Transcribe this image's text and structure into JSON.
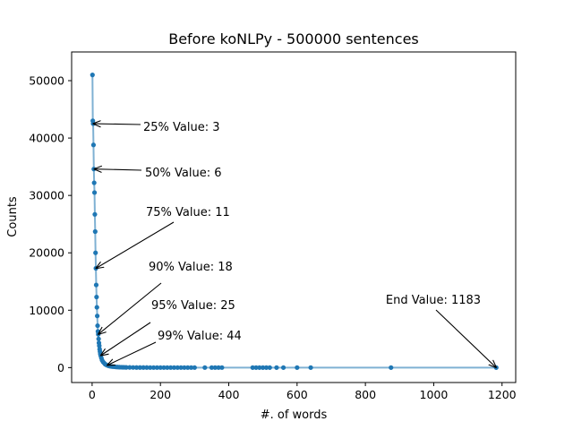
{
  "chart_data": {
    "type": "line",
    "title": "Before koNLPy - 500000 sentences",
    "xlabel": "#. of words",
    "ylabel": "Counts",
    "xlim": [
      -60,
      1240
    ],
    "ylim": [
      -2600,
      55000
    ],
    "xticks": [
      0,
      200,
      400,
      600,
      800,
      1000,
      1200
    ],
    "yticks": [
      0,
      10000,
      20000,
      30000,
      40000,
      50000
    ],
    "grid": false,
    "colors": {
      "line": "#7fb1d3",
      "marker": "#1f77b4",
      "axes": "#000000"
    },
    "series": [
      {
        "x": [
          1,
          2,
          3,
          4,
          5,
          6,
          7,
          8,
          9,
          10,
          11,
          12,
          13,
          14,
          15,
          16,
          17,
          18,
          19,
          20,
          21,
          22,
          23,
          24,
          25,
          27,
          29,
          32,
          35,
          38,
          41,
          44,
          48,
          52,
          56,
          60,
          65,
          70,
          75,
          80,
          85,
          90,
          95,
          100,
          110,
          120,
          130,
          140,
          150,
          160,
          170,
          180,
          190,
          200,
          210,
          220,
          230,
          240,
          250,
          260,
          270,
          280,
          290,
          300,
          330,
          350,
          360,
          370,
          380,
          470,
          480,
          490,
          500,
          510,
          520,
          540,
          560,
          600,
          640,
          875,
          1183
        ],
        "y": [
          51000,
          43000,
          42500,
          38800,
          34600,
          32200,
          30500,
          26700,
          23700,
          20000,
          17300,
          14400,
          12300,
          10500,
          9000,
          7300,
          6300,
          5800,
          5000,
          4300,
          3800,
          3200,
          2800,
          2400,
          2100,
          1700,
          1300,
          1000,
          800,
          600,
          500,
          400,
          300,
          250,
          200,
          170,
          140,
          110,
          90,
          75,
          60,
          50,
          42,
          35,
          28,
          22,
          18,
          15,
          12,
          10,
          9,
          8,
          7,
          6,
          5,
          5,
          4,
          4,
          4,
          3,
          3,
          3,
          3,
          3,
          2,
          2,
          2,
          2,
          2,
          1,
          1,
          1,
          1,
          1,
          1,
          1,
          1,
          1,
          1,
          1,
          1
        ]
      }
    ],
    "annotations": [
      {
        "text": "25% Value: 3",
        "x": 3,
        "y": 42500
      },
      {
        "text": "50% Value: 6",
        "x": 6,
        "y": 34600
      },
      {
        "text": "75% Value: 11",
        "x": 11,
        "y": 17300
      },
      {
        "text": "90% Value: 18",
        "x": 18,
        "y": 5800
      },
      {
        "text": "95% Value: 25",
        "x": 25,
        "y": 2100
      },
      {
        "text": "99% Value: 44",
        "x": 44,
        "y": 400
      },
      {
        "text": "End Value: 1183",
        "x": 1183,
        "y": 1
      }
    ]
  }
}
